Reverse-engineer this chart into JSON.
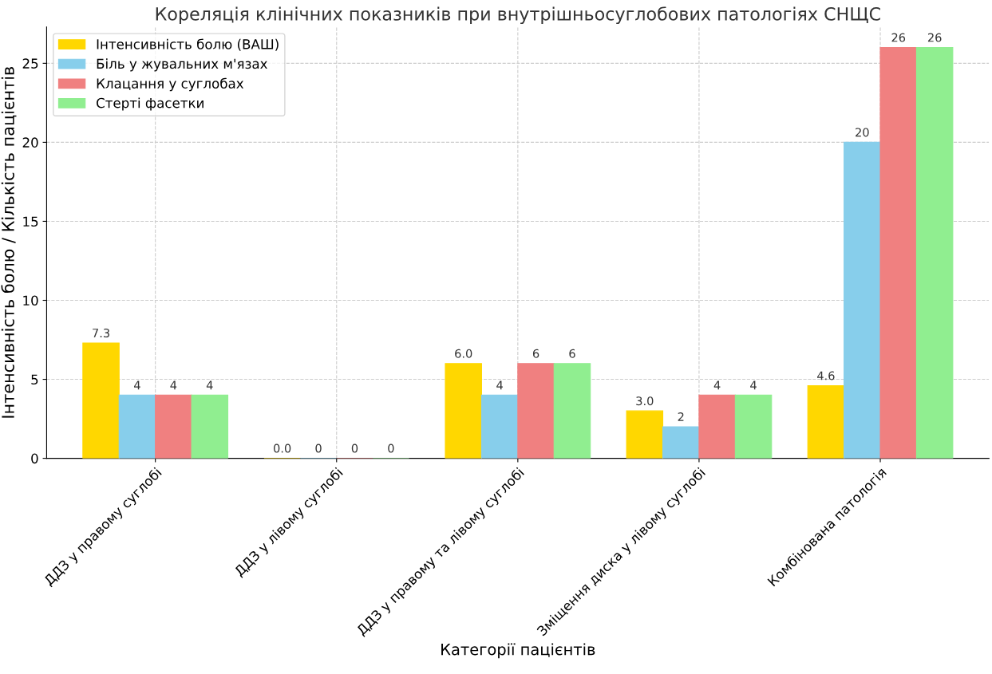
{
  "chart_data": {
    "type": "bar",
    "title": "Кореляція клінічних показників при внутрішньосуглобових патологіях СНЩС",
    "xlabel": "Категорії пацієнтів",
    "ylabel": "Інтенсивність болю / Кількість пацієнтів",
    "categories": [
      "ДДЗ у правому суглобі",
      "ДДЗ у лівому суглобі",
      "ДДЗ у правому та лівому суглобі",
      "Зміщення диска у лівому суглобі",
      "Комбінована патологія"
    ],
    "series": [
      {
        "name": "Інтенсивність болю (ВАШ)",
        "color": "#ffd700",
        "values": [
          7.3,
          0.0,
          6.0,
          3.0,
          4.6
        ],
        "value_labels": [
          "7.3",
          "0.0",
          "6.0",
          "3.0",
          "4.6"
        ]
      },
      {
        "name": "Біль у жувальних м'язах",
        "color": "#87ceeb",
        "values": [
          4,
          0,
          4,
          2,
          20
        ],
        "value_labels": [
          "4",
          "0",
          "4",
          "2",
          "20"
        ]
      },
      {
        "name": "Клацання у суглобах",
        "color": "#f08080",
        "values": [
          4,
          0,
          6,
          4,
          26
        ],
        "value_labels": [
          "4",
          "0",
          "6",
          "4",
          "26"
        ]
      },
      {
        "name": "Стерті фасетки",
        "color": "#90ee90",
        "values": [
          4,
          0,
          6,
          4,
          26
        ],
        "value_labels": [
          "4",
          "0",
          "6",
          "4",
          "26"
        ]
      }
    ],
    "ylim": [
      0,
      27.3
    ],
    "yticks": [
      0,
      5,
      10,
      15,
      20,
      25
    ],
    "grid": true,
    "legend": "top left"
  }
}
